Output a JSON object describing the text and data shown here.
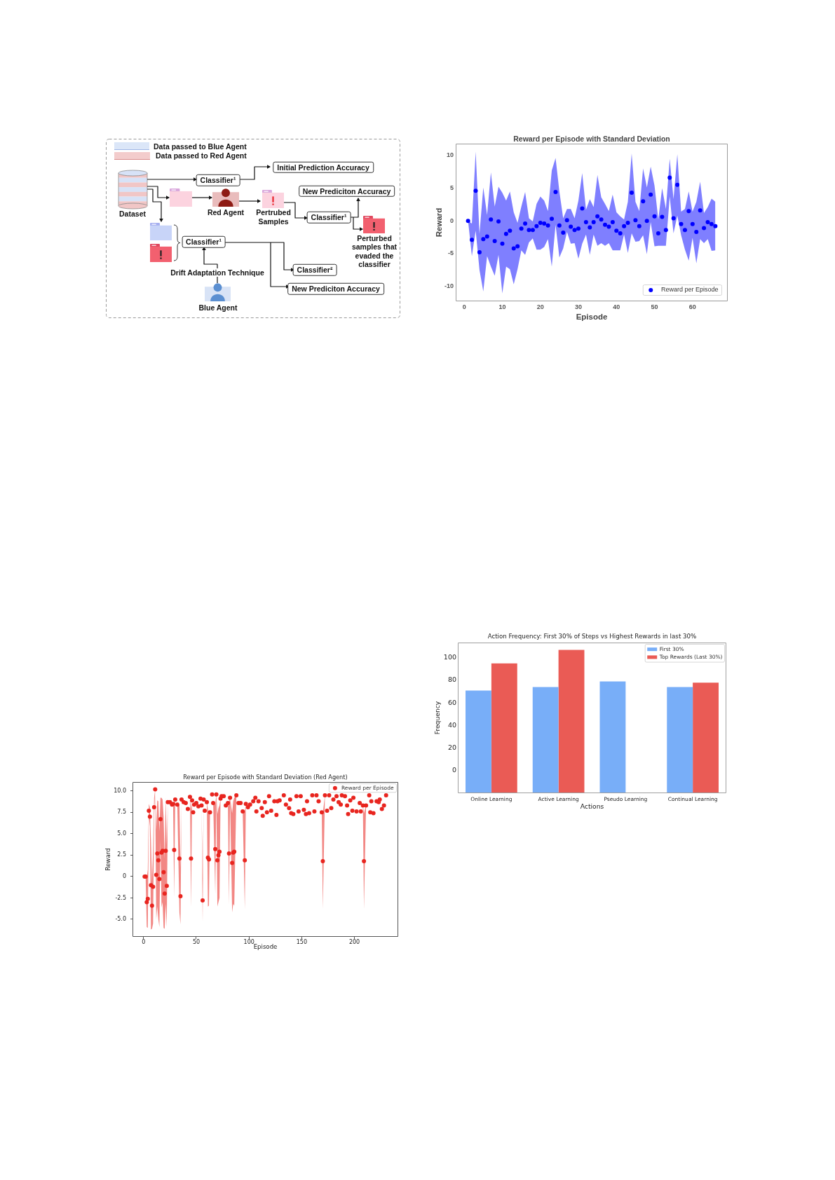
{
  "chart_data": [
    {
      "type": "other",
      "annotations": [
        "Data passed to Blue Agent",
        "Data passed to Red Agent",
        "Dataset",
        "Classifier¹",
        "Initial Prediction Accuracy",
        "Red Agent",
        "Pertrubed Samples",
        "New Prediciton Accuracy",
        "Classifier¹",
        "Perturbed samples that evaded the classifier",
        "Classifier¹",
        "Drift Adaptation Technique",
        "Classifier²",
        "New Prediciton Accuracy",
        "Blue Agent"
      ]
    },
    {
      "type": "scatter",
      "title": "Reward per Episode with Standard Deviation",
      "xlabel": "Episode",
      "ylabel": "Reward",
      "x": [
        1,
        2,
        3,
        4,
        5,
        6,
        7,
        8,
        9,
        10,
        11,
        12,
        13,
        14,
        15,
        16,
        17,
        18,
        19,
        20,
        21,
        22,
        23,
        24,
        25,
        26,
        27,
        28,
        29,
        30,
        31,
        32,
        33,
        34,
        35,
        36,
        37,
        38,
        39,
        40,
        41,
        42,
        43,
        44,
        45,
        46,
        47,
        48,
        49,
        50,
        51,
        52,
        53,
        54,
        55,
        56,
        57,
        58,
        59,
        60,
        61,
        62,
        63,
        64,
        65,
        66
      ],
      "series": [
        {
          "name": "Reward per Episode",
          "color": "#0000ff",
          "values": [
            0,
            -2.9,
            4.6,
            -4.8,
            -2.8,
            -2.4,
            0.2,
            -3.1,
            -0.1,
            -3.5,
            -2.0,
            -1.5,
            -4.2,
            -3.9,
            -1.2,
            -0.4,
            -1.4,
            -1.4,
            -0.8,
            -0.3,
            -0.4,
            -0.7,
            0.3,
            4.4,
            -0.7,
            -1.8,
            0.1,
            -0.9,
            -1.4,
            -1.2,
            1.9,
            -0.2,
            -1.0,
            -0.2,
            0.7,
            0.2,
            -0.6,
            -0.9,
            -0.2,
            -1.5,
            -1.9,
            -0.8,
            -0.3,
            4.3,
            0.1,
            -0.8,
            3.0,
            0,
            4.0,
            0.7,
            -1.9,
            0.6,
            -1.4,
            6.6,
            0.4,
            5.5,
            -0.5,
            -1.4,
            1.5,
            -0.5,
            -1.7,
            1.6,
            -1.1,
            -0.2,
            -0.5,
            -0.8
          ],
          "lower": [
            0,
            -5.4,
            -1.5,
            -7.5,
            -10.8,
            -5.4,
            -7.0,
            -8.4,
            -5.2,
            -11.1,
            -7.0,
            -7.4,
            -9.7,
            -7.4,
            -4.5,
            -5.2,
            -3.3,
            -2.7,
            -4.4,
            -4.4,
            -4.0,
            -2.8,
            -7.0,
            -0.6,
            -5.6,
            -4.2,
            -1.7,
            -3.5,
            -3.4,
            -5.8,
            -3.5,
            -2.1,
            -5.2,
            -2.1,
            -3.8,
            -3.4,
            -3.8,
            -3.4,
            -4.5,
            -4.5,
            -4.5,
            -2.1,
            -4.9,
            -1.9,
            -3.2,
            -3.1,
            -2.2,
            -5.1,
            -0.2,
            -3.9,
            -3.8,
            -3.8,
            -3.8,
            3.7,
            -1.9,
            0.8,
            -2.2,
            -4.4,
            -6.1,
            -2.6,
            -6.5,
            -2.8,
            -3.4,
            -2.8,
            -4.6,
            -4.5
          ],
          "upper": [
            0,
            -0.4,
            10.6,
            -2.0,
            5.1,
            0.9,
            7.4,
            2.2,
            5.2,
            4.3,
            3.1,
            4.5,
            1.3,
            -0.3,
            2.2,
            4.4,
            0.4,
            -0.1,
            2.6,
            3.7,
            3.1,
            1.5,
            7.7,
            9.6,
            4.5,
            0.4,
            1.8,
            1.8,
            0.4,
            3.1,
            7.3,
            1.7,
            3.3,
            2.1,
            7.0,
            3.6,
            2.6,
            1.5,
            4.0,
            1.3,
            0.7,
            0.2,
            2.9,
            10.3,
            2.9,
            1.5,
            8.0,
            5.1,
            8.3,
            5.4,
            0.2,
            5.0,
            1.8,
            9.5,
            3.3,
            10.2,
            1.4,
            1.8,
            4.5,
            1.4,
            2.9,
            6.0,
            1.2,
            2.1,
            3.4,
            2.9
          ]
        }
      ],
      "xlim": [
        -2.25,
        69.25
      ],
      "ylim": [
        -12.3,
        11.8
      ],
      "xticks": [
        0,
        10,
        20,
        30,
        40,
        50,
        60
      ],
      "yticks": [
        -10,
        -5,
        0,
        5,
        10
      ],
      "legend": "bottom right",
      "marker": "circle"
    },
    {
      "type": "bar",
      "title": "Action Frequency: First 30% of Steps vs Highest Rewards in last 30%",
      "xlabel": "Actions",
      "ylabel": "Frequency",
      "categories": [
        "Online Learning",
        "Active Learning",
        "Pseudo Learning",
        "Continual Learning"
      ],
      "series": [
        {
          "name": "First 30%",
          "color": "#78aef8",
          "values": [
            91,
            94,
            99,
            94
          ],
          "base": [
            -20,
            -20,
            -20,
            -20
          ]
        },
        {
          "name": "Top Rewards (Last 30%)",
          "color": "#ea5b55",
          "values": [
            115,
            127,
            null,
            98
          ],
          "base": [
            -20,
            -20,
            null,
            -20
          ]
        }
      ],
      "ylim": [
        -20,
        113.5
      ],
      "yticks": [
        0,
        20,
        40,
        60,
        80,
        100
      ],
      "legend": "top right"
    },
    {
      "type": "scatter",
      "title": "Reward per Episode with Standard Deviation (Red Agent)",
      "xlabel": "Episode",
      "ylabel": "Reward",
      "x": [
        1,
        2,
        3,
        4,
        5,
        6,
        7,
        8,
        9,
        10,
        11,
        12,
        13,
        14,
        15,
        16,
        17,
        18,
        19,
        20,
        21,
        22,
        23,
        25,
        27,
        28,
        29,
        30,
        32,
        34,
        35,
        36,
        38,
        40,
        42,
        44,
        45,
        46,
        47,
        48,
        50,
        52,
        54,
        55,
        56,
        57,
        58,
        60,
        61,
        62,
        63,
        65,
        66,
        68,
        69,
        70,
        71,
        72,
        73,
        74,
        76,
        78,
        80,
        81,
        82,
        84,
        85,
        86,
        88,
        90,
        92,
        94,
        96,
        97,
        99,
        101,
        104,
        106,
        107,
        109,
        112,
        113,
        115,
        117,
        119,
        121,
        124,
        126,
        127,
        129,
        133,
        135,
        138,
        139,
        140,
        142,
        145,
        147,
        149,
        152,
        154,
        155,
        157,
        160,
        162,
        164,
        166,
        169,
        170,
        172,
        174,
        176,
        178,
        180,
        183,
        185,
        187,
        188,
        191,
        193,
        194,
        196,
        198,
        199,
        202,
        205,
        206,
        208,
        209,
        211,
        214,
        215,
        216,
        218,
        221,
        223,
        224,
        226,
        228,
        230
      ],
      "series": [
        {
          "name": "Reward per Episode",
          "color": "#e8251f",
          "values": [
            0,
            0,
            -3.0,
            -2.6,
            7.7,
            7.0,
            -1.0,
            -3.4,
            -1.2,
            8.1,
            10.2,
            0.2,
            2.7,
            1.9,
            -0.3,
            6.7,
            2.8,
            3.0,
            0.5,
            -2.0,
            3.0,
            -1.1,
            8.7,
            8.7,
            8.4,
            8.5,
            3.1,
            9.0,
            8.4,
            2.1,
            -2.3,
            9.0,
            8.7,
            8.6,
            7.9,
            9.3,
            2.1,
            8.9,
            7.5,
            8.4,
            8.6,
            8.2,
            9.1,
            8.3,
            -2.8,
            9.0,
            7.7,
            8.7,
            2.2,
            2.0,
            7.5,
            9.6,
            8.6,
            3.2,
            9.6,
            1.9,
            2.5,
            2.9,
            9.1,
            9.4,
            9.4,
            8.3,
            8.6,
            2.7,
            9.2,
            1.6,
            2.8,
            2.9,
            9.5,
            8.6,
            8.6,
            7.6,
            1.9,
            8.5,
            8.1,
            8.4,
            8.8,
            9.2,
            7.6,
            8.8,
            8.0,
            7.1,
            8.7,
            7.5,
            9.4,
            7.7,
            8.8,
            7.2,
            8.8,
            8.9,
            9.5,
            8.4,
            8.0,
            9.0,
            7.4,
            7.3,
            9.4,
            7.6,
            9.4,
            7.8,
            7.3,
            8.8,
            7.4,
            9.5,
            7.6,
            9.5,
            8.8,
            7.5,
            1.8,
            9.5,
            7.7,
            9.5,
            8.0,
            9.0,
            9.4,
            8.7,
            8.4,
            9.5,
            9.4,
            8.3,
            7.3,
            8.9,
            7.7,
            9.2,
            7.6,
            8.6,
            7.6,
            8.3,
            1.8,
            8.3,
            9.5,
            7.5,
            8.8,
            7.4,
            8.8,
            8.7,
            9.0,
            7.9,
            8.3,
            9.5
          ],
          "lower": [
            0,
            -0.3,
            -5.9,
            -6.0,
            6.9,
            5.9,
            -6.2,
            -6.1,
            -5.5,
            7.0,
            10.2,
            -5.0,
            -3.5,
            -5.0,
            -5.9,
            4.2,
            -3.6,
            -3.0,
            -6.0,
            -6.1,
            -3.2,
            -5.9,
            8.7,
            8.7,
            8.4,
            8.5,
            -2.4,
            9.0,
            8.4,
            -4.2,
            -5.6,
            9.0,
            8.7,
            8.6,
            7.9,
            9.3,
            -3.6,
            8.9,
            7.5,
            8.4,
            8.6,
            8.2,
            9.1,
            8.3,
            -5.3,
            9.0,
            7.7,
            8.7,
            -3.5,
            -3.4,
            7.5,
            9.6,
            8.6,
            -2.0,
            9.6,
            -3.5,
            -3.0,
            -2.5,
            9.1,
            9.4,
            9.4,
            8.3,
            8.6,
            -3.3,
            9.2,
            -4.2,
            -3.2,
            -3.4,
            9.5,
            8.6,
            8.6,
            7.6,
            -3.8,
            8.5,
            8.1,
            8.4,
            8.8,
            9.2,
            7.6,
            8.8,
            8.0,
            7.1,
            8.7,
            7.5,
            9.4,
            7.7,
            8.8,
            7.2,
            8.8,
            8.9,
            9.5,
            8.4,
            8.0,
            9.0,
            7.4,
            7.3,
            9.4,
            7.6,
            9.4,
            7.8,
            7.3,
            8.8,
            7.4,
            9.5,
            7.6,
            9.5,
            8.8,
            7.5,
            -3.8,
            9.5,
            7.7,
            9.5,
            8.0,
            9.0,
            9.4,
            8.7,
            8.4,
            9.5,
            9.4,
            8.3,
            7.3,
            8.9,
            7.7,
            9.2,
            7.6,
            8.6,
            7.6,
            8.3,
            -3.8,
            8.3,
            9.5,
            7.5,
            8.8,
            7.4,
            8.8,
            8.7,
            9.0,
            7.9,
            8.3,
            9.5
          ],
          "upper": [
            0,
            0.3,
            -0.1,
            0.8,
            8.5,
            8.1,
            4.2,
            -0.7,
            3.1,
            9.2,
            10.2,
            5.4,
            8.9,
            8.8,
            5.3,
            9.2,
            9.2,
            9.0,
            7.0,
            2.1,
            9.2,
            3.7,
            8.7,
            8.7,
            8.4,
            8.5,
            8.6,
            9.0,
            8.4,
            8.4,
            1.0,
            9.0,
            8.7,
            8.6,
            7.9,
            9.3,
            7.8,
            8.9,
            7.5,
            8.4,
            8.6,
            8.2,
            9.1,
            8.3,
            -0.3,
            9.0,
            7.7,
            8.7,
            7.9,
            7.4,
            7.5,
            9.6,
            8.6,
            8.4,
            9.6,
            7.3,
            8.0,
            8.3,
            9.1,
            9.4,
            9.4,
            8.3,
            8.6,
            8.7,
            9.2,
            7.4,
            8.8,
            9.2,
            9.5,
            8.6,
            8.6,
            7.6,
            7.6,
            8.5,
            8.1,
            8.4,
            8.8,
            9.2,
            7.6,
            8.8,
            8.0,
            7.1,
            8.7,
            7.5,
            9.4,
            7.7,
            8.8,
            7.2,
            8.8,
            8.9,
            9.5,
            8.4,
            8.0,
            9.0,
            7.4,
            7.3,
            9.4,
            7.6,
            9.4,
            7.8,
            7.3,
            8.8,
            7.4,
            9.5,
            7.6,
            9.5,
            8.8,
            7.5,
            7.4,
            9.5,
            7.7,
            9.5,
            8.0,
            9.0,
            9.4,
            8.7,
            8.4,
            9.5,
            9.4,
            8.3,
            7.3,
            8.9,
            7.7,
            9.2,
            7.6,
            8.6,
            7.6,
            8.3,
            7.4,
            8.3,
            9.5,
            7.5,
            8.8,
            7.4,
            8.8,
            8.7,
            9.0,
            7.9,
            8.3,
            9.5
          ]
        }
      ],
      "xlim": [
        -10.5,
        241.5
      ],
      "ylim": [
        -7.05,
        11.05
      ],
      "xticks": [
        0,
        50,
        100,
        150,
        200
      ],
      "yticks": [
        {
          "value": -5,
          "label": "-5.0"
        },
        -2.5,
        0,
        2.5,
        {
          "value": 5,
          "label": "5.0"
        },
        7.5,
        {
          "value": 10,
          "label": "10.0"
        }
      ],
      "legend": "top right",
      "marker": "circle"
    }
  ]
}
